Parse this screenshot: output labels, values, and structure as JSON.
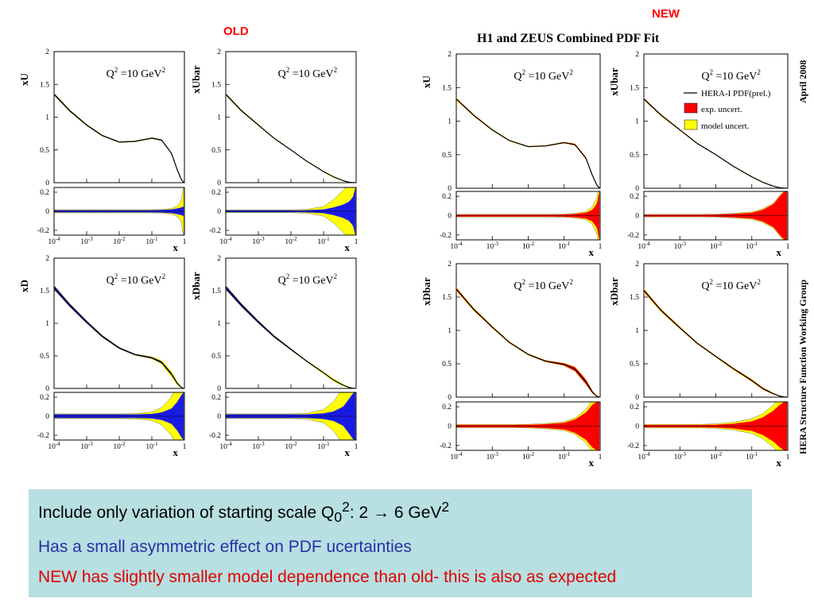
{
  "labels": {
    "old": "OLD",
    "new": "NEW",
    "new_title": "H1 and ZEUS Combined PDF Fit",
    "date": "April 2008",
    "group": "HERA Structure Function Working Group",
    "q2": "Q",
    "q2_sup": "2",
    "q2_rest": " =10 GeV",
    "q2_sup2": "2",
    "x_axis": "x",
    "x_ticks": [
      "10-4",
      "10-3",
      "10-2",
      "10-1",
      "1"
    ],
    "y_ticks_main": [
      "0",
      "0.5",
      "1",
      "1.5",
      "2"
    ],
    "y_ticks_ratio": [
      "-0.2",
      "0",
      "0.2"
    ]
  },
  "legend": {
    "central": "HERA-I PDF(prel.)",
    "exp": "exp. uncert.",
    "model": "model uncert."
  },
  "colors": {
    "exp_old": "#1a1ae6",
    "exp_new": "#ff0000",
    "model": "#ffff00",
    "curve": "#000000",
    "box_bg": "#b8dfe1",
    "note_black": "#000000",
    "note_blue": "#2233aa",
    "note_red": "#e00000"
  },
  "notes": {
    "line1_a": "Include only variation of starting scale Q",
    "line1_sub": "0",
    "line1_sup": "2",
    "line1_b": ": 2 → 6 GeV",
    "line1_sup2": "2",
    "line2": "Has a small asymmetric effect on PDF ucertainties",
    "line3": "NEW has slightly smaller model dependence than old- this is also as expected"
  },
  "chart_data": [
    {
      "type": "line",
      "group": "OLD",
      "panel": "xU",
      "ylabel": "xU",
      "x_scale": "log",
      "xlim": [
        0.0001,
        1
      ],
      "ylim": [
        0,
        2
      ],
      "ratio_ylim": [
        -0.25,
        0.25
      ],
      "x": [
        0.0001,
        0.0003,
        0.001,
        0.003,
        0.01,
        0.03,
        0.1,
        0.2,
        0.4,
        0.6,
        0.8,
        0.95
      ],
      "values": [
        1.35,
        1.1,
        0.88,
        0.72,
        0.62,
        0.63,
        0.68,
        0.65,
        0.45,
        0.2,
        0.05,
        0.005
      ],
      "exp_band": [
        0.012,
        0.012,
        0.012,
        0.012,
        0.012,
        0.012,
        0.012,
        0.014,
        0.02,
        0.03,
        0.04,
        0.05
      ],
      "model_band": [
        0.005,
        0.005,
        0.005,
        0.005,
        0.005,
        0.005,
        0.005,
        0.006,
        0.008,
        0.025,
        0.07,
        0.25
      ]
    },
    {
      "type": "line",
      "group": "OLD",
      "panel": "xUbar",
      "ylabel": "xUbar",
      "x_scale": "log",
      "xlim": [
        0.0001,
        1
      ],
      "ylim": [
        0,
        2
      ],
      "ratio_ylim": [
        -0.25,
        0.25
      ],
      "x": [
        0.0001,
        0.0003,
        0.001,
        0.003,
        0.01,
        0.03,
        0.1,
        0.2,
        0.4,
        0.6,
        0.8,
        0.95
      ],
      "values": [
        1.35,
        1.1,
        0.88,
        0.68,
        0.5,
        0.33,
        0.17,
        0.09,
        0.03,
        0.008,
        0.002,
        0.0005
      ],
      "exp_band": [
        0.01,
        0.01,
        0.01,
        0.01,
        0.01,
        0.012,
        0.02,
        0.04,
        0.07,
        0.1,
        0.15,
        0.25
      ],
      "model_band": [
        0.005,
        0.005,
        0.005,
        0.005,
        0.005,
        0.008,
        0.03,
        0.08,
        0.15,
        0.2,
        0.25,
        0.25
      ]
    },
    {
      "type": "line",
      "group": "OLD",
      "panel": "xD",
      "ylabel": "xD",
      "x_scale": "log",
      "xlim": [
        0.0001,
        1
      ],
      "ylim": [
        0,
        2
      ],
      "ratio_ylim": [
        -0.25,
        0.25
      ],
      "x": [
        0.0001,
        0.0003,
        0.001,
        0.003,
        0.01,
        0.03,
        0.1,
        0.2,
        0.4,
        0.6,
        0.8,
        0.95
      ],
      "values": [
        1.55,
        1.28,
        1.02,
        0.8,
        0.62,
        0.52,
        0.47,
        0.4,
        0.22,
        0.08,
        0.015,
        0.002
      ],
      "exp_band": [
        0.02,
        0.02,
        0.02,
        0.02,
        0.02,
        0.02,
        0.025,
        0.04,
        0.08,
        0.15,
        0.22,
        0.25
      ],
      "model_band": [
        0.005,
        0.005,
        0.005,
        0.005,
        0.005,
        0.008,
        0.02,
        0.05,
        0.12,
        0.2,
        0.25,
        0.25
      ]
    },
    {
      "type": "line",
      "group": "OLD",
      "panel": "xDbar",
      "ylabel": "xDbar",
      "x_scale": "log",
      "xlim": [
        0.0001,
        1
      ],
      "ylim": [
        0,
        2
      ],
      "ratio_ylim": [
        -0.25,
        0.25
      ],
      "x": [
        0.0001,
        0.0003,
        0.001,
        0.003,
        0.01,
        0.03,
        0.1,
        0.2,
        0.4,
        0.6,
        0.8,
        0.95
      ],
      "values": [
        1.55,
        1.28,
        1.02,
        0.8,
        0.6,
        0.42,
        0.24,
        0.13,
        0.05,
        0.015,
        0.003,
        0.0005
      ],
      "exp_band": [
        0.02,
        0.02,
        0.02,
        0.02,
        0.02,
        0.02,
        0.03,
        0.05,
        0.1,
        0.18,
        0.24,
        0.25
      ],
      "model_band": [
        0.005,
        0.005,
        0.005,
        0.005,
        0.005,
        0.01,
        0.04,
        0.1,
        0.2,
        0.25,
        0.25,
        0.25
      ]
    },
    {
      "type": "line",
      "group": "NEW",
      "panel": "xU",
      "ylabel": "xU",
      "x_scale": "log",
      "xlim": [
        0.0001,
        1
      ],
      "ylim": [
        0,
        2
      ],
      "ratio_ylim": [
        -0.25,
        0.25
      ],
      "x": [
        0.0001,
        0.0003,
        0.001,
        0.003,
        0.01,
        0.03,
        0.1,
        0.2,
        0.4,
        0.6,
        0.8,
        0.95
      ],
      "values": [
        1.33,
        1.09,
        0.87,
        0.71,
        0.62,
        0.63,
        0.68,
        0.65,
        0.45,
        0.2,
        0.05,
        0.005
      ],
      "exp_band": [
        0.01,
        0.01,
        0.01,
        0.01,
        0.01,
        0.01,
        0.012,
        0.018,
        0.03,
        0.06,
        0.12,
        0.25
      ],
      "model_band": [
        0.004,
        0.004,
        0.004,
        0.004,
        0.004,
        0.004,
        0.004,
        0.005,
        0.01,
        0.03,
        0.06,
        0.1
      ]
    },
    {
      "type": "line",
      "group": "NEW",
      "panel": "xUbar",
      "ylabel": "xUbar",
      "x_scale": "log",
      "xlim": [
        0.0001,
        1
      ],
      "ylim": [
        0,
        2
      ],
      "ratio_ylim": [
        -0.25,
        0.25
      ],
      "x": [
        0.0001,
        0.0003,
        0.001,
        0.003,
        0.01,
        0.03,
        0.1,
        0.2,
        0.4,
        0.6,
        0.8,
        0.95
      ],
      "values": [
        1.33,
        1.09,
        0.87,
        0.67,
        0.5,
        0.33,
        0.17,
        0.09,
        0.03,
        0.008,
        0.002,
        0.0005
      ],
      "exp_band": [
        0.01,
        0.01,
        0.01,
        0.01,
        0.012,
        0.018,
        0.03,
        0.06,
        0.12,
        0.2,
        0.25,
        0.25
      ],
      "model_band": [
        0.003,
        0.003,
        0.003,
        0.003,
        0.003,
        0.005,
        0.008,
        0.01,
        0.01,
        0.01,
        0.01,
        0.01
      ]
    },
    {
      "type": "line",
      "group": "NEW",
      "panel": "xDbar_left",
      "ylabel": "xDbar",
      "x_scale": "log",
      "xlim": [
        0.0001,
        1
      ],
      "ylim": [
        0,
        2
      ],
      "ratio_ylim": [
        -0.25,
        0.25
      ],
      "x": [
        0.0001,
        0.0003,
        0.001,
        0.003,
        0.01,
        0.03,
        0.1,
        0.2,
        0.4,
        0.6,
        0.8,
        0.95
      ],
      "values": [
        1.62,
        1.32,
        1.05,
        0.82,
        0.64,
        0.54,
        0.49,
        0.42,
        0.23,
        0.08,
        0.015,
        0.002
      ],
      "exp_band": [
        0.012,
        0.012,
        0.012,
        0.012,
        0.014,
        0.02,
        0.035,
        0.07,
        0.14,
        0.22,
        0.25,
        0.25
      ],
      "model_band": [
        0.005,
        0.005,
        0.005,
        0.005,
        0.005,
        0.006,
        0.01,
        0.015,
        0.03,
        0.05,
        0.08,
        0.1
      ]
    },
    {
      "type": "line",
      "group": "NEW",
      "panel": "xDbar",
      "ylabel": "xDbar",
      "x_scale": "log",
      "xlim": [
        0.0001,
        1
      ],
      "ylim": [
        0,
        2
      ],
      "ratio_ylim": [
        -0.25,
        0.25
      ],
      "x": [
        0.0001,
        0.0003,
        0.001,
        0.003,
        0.01,
        0.03,
        0.1,
        0.2,
        0.4,
        0.6,
        0.8,
        0.95
      ],
      "values": [
        1.6,
        1.3,
        1.04,
        0.81,
        0.61,
        0.43,
        0.25,
        0.13,
        0.05,
        0.015,
        0.003,
        0.0005
      ],
      "exp_band": [
        0.012,
        0.012,
        0.012,
        0.012,
        0.015,
        0.025,
        0.05,
        0.09,
        0.16,
        0.22,
        0.25,
        0.25
      ],
      "model_band": [
        0.006,
        0.006,
        0.006,
        0.006,
        0.008,
        0.015,
        0.025,
        0.04,
        0.06,
        0.07,
        0.08,
        0.08
      ]
    }
  ]
}
